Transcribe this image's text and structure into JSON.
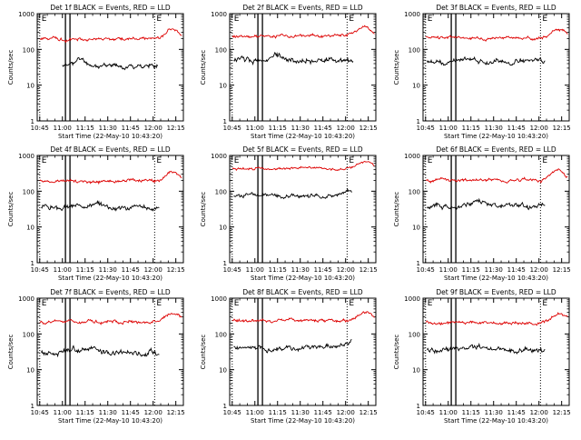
{
  "chart_data": [
    {
      "type": "line",
      "title": "Det 1f BLACK = Events, RED = LLD",
      "xlabel": "Start Time (22-May-10 10:43:20)",
      "ylabel": "Counts/sec",
      "yscale": "log",
      "ylim": [
        1,
        1000
      ],
      "x_ticks": [
        "10:45",
        "11:00",
        "11:15",
        "11:30",
        "11:45",
        "12:00",
        "12:15"
      ],
      "y_ticks": [
        "1",
        "10",
        "100",
        "1000"
      ],
      "markers": [
        {
          "label": "E",
          "time": "10:45"
        },
        {
          "label": "",
          "time": "11:02"
        },
        {
          "label": "",
          "time": "11:05"
        },
        {
          "label": "E",
          "time": "12:01"
        }
      ],
      "series": [
        {
          "name": "Events",
          "color": "#000000",
          "start": "11:00",
          "end": "12:03",
          "base": 35,
          "amp": 0.12,
          "seed": 11,
          "bumps": [
            {
              "time": "11:12",
              "amp": 0.5,
              "width": 5
            }
          ]
        },
        {
          "name": "LLD",
          "color": "#dd0000",
          "start": "10:45",
          "end": "12:19",
          "base": 200,
          "amp": 0.08,
          "seed": 21,
          "bumps": [
            {
              "time": "12:13",
              "amp": 0.8,
              "width": 6
            }
          ]
        }
      ]
    },
    {
      "type": "line",
      "title": "Det 2f BLACK = Events, RED = LLD",
      "xlabel": "Start Time (22-May-10 10:43:20)",
      "ylabel": "Counts/sec",
      "yscale": "log",
      "ylim": [
        1,
        1000
      ],
      "x_ticks": [
        "10:45",
        "11:00",
        "11:15",
        "11:30",
        "11:45",
        "12:00",
        "12:15"
      ],
      "y_ticks": [
        "1",
        "10",
        "100",
        "1000"
      ],
      "markers": [
        {
          "label": "E",
          "time": "10:45"
        },
        {
          "label": "",
          "time": "11:02"
        },
        {
          "label": "",
          "time": "11:05"
        },
        {
          "label": "E",
          "time": "12:01"
        }
      ],
      "series": [
        {
          "name": "Events",
          "color": "#000000",
          "start": "10:46",
          "end": "12:05",
          "base": 50,
          "amp": 0.14,
          "seed": 12,
          "bumps": [
            {
              "time": "11:15",
              "amp": 0.4,
              "width": 6
            }
          ]
        },
        {
          "name": "LLD",
          "color": "#dd0000",
          "start": "10:45",
          "end": "12:19",
          "base": 240,
          "amp": 0.08,
          "seed": 22,
          "bumps": [
            {
              "time": "12:12",
              "amp": 0.7,
              "width": 6
            }
          ]
        }
      ]
    },
    {
      "type": "line",
      "title": "Det 3f BLACK = Events, RED = LLD",
      "xlabel": "Start Time (22-May-10 10:43:20)",
      "ylabel": "Counts/sec",
      "yscale": "log",
      "ylim": [
        1,
        1000
      ],
      "x_ticks": [
        "10:45",
        "11:00",
        "11:15",
        "11:30",
        "11:45",
        "12:00",
        "12:15"
      ],
      "y_ticks": [
        "1",
        "10",
        "100",
        "1000"
      ],
      "markers": [
        {
          "label": "E",
          "time": "10:45"
        },
        {
          "label": "",
          "time": "11:02"
        },
        {
          "label": "",
          "time": "11:05"
        },
        {
          "label": "E",
          "time": "12:01"
        }
      ],
      "series": [
        {
          "name": "Events",
          "color": "#000000",
          "start": "10:46",
          "end": "12:04",
          "base": 45,
          "amp": 0.13,
          "seed": 13,
          "bumps": [
            {
              "time": "11:15",
              "amp": 0.4,
              "width": 6
            }
          ]
        },
        {
          "name": "LLD",
          "color": "#dd0000",
          "start": "10:45",
          "end": "12:19",
          "base": 210,
          "amp": 0.08,
          "seed": 23,
          "bumps": [
            {
              "time": "12:13",
              "amp": 0.8,
              "width": 6
            }
          ]
        }
      ]
    },
    {
      "type": "line",
      "title": "Det 4f BLACK = Events, RED = LLD",
      "xlabel": "Start Time (22-May-10 10:43:20)",
      "ylabel": "Counts/sec",
      "yscale": "log",
      "ylim": [
        1,
        1000
      ],
      "x_ticks": [
        "10:45",
        "11:00",
        "11:15",
        "11:30",
        "11:45",
        "12:00",
        "12:15"
      ],
      "y_ticks": [
        "1",
        "10",
        "100",
        "1000"
      ],
      "markers": [
        {
          "label": "E",
          "time": "10:45"
        },
        {
          "label": "",
          "time": "11:02"
        },
        {
          "label": "",
          "time": "11:05"
        },
        {
          "label": "E",
          "time": "12:01"
        }
      ],
      "series": [
        {
          "name": "Events",
          "color": "#000000",
          "start": "10:46",
          "end": "12:04",
          "base": 35,
          "amp": 0.13,
          "seed": 14,
          "bumps": [
            {
              "time": "11:20",
              "amp": 0.3,
              "width": 8
            }
          ]
        },
        {
          "name": "LLD",
          "color": "#dd0000",
          "start": "10:45",
          "end": "12:19",
          "base": 190,
          "amp": 0.08,
          "seed": 24,
          "bumps": [
            {
              "time": "12:13",
              "amp": 0.8,
              "width": 6
            }
          ]
        }
      ]
    },
    {
      "type": "line",
      "title": "Det 5f BLACK = Events, RED = LLD",
      "xlabel": "Start Time (22-May-10 10:43:20)",
      "ylabel": "Counts/sec",
      "yscale": "log",
      "ylim": [
        1,
        1000
      ],
      "x_ticks": [
        "10:45",
        "11:00",
        "11:15",
        "11:30",
        "11:45",
        "12:00",
        "12:15"
      ],
      "y_ticks": [
        "1",
        "10",
        "100",
        "1000"
      ],
      "markers": [
        {
          "label": "E",
          "time": "10:45"
        },
        {
          "label": "",
          "time": "11:02"
        },
        {
          "label": "",
          "time": "11:05"
        },
        {
          "label": "E",
          "time": "12:01"
        }
      ],
      "series": [
        {
          "name": "Events",
          "color": "#000000",
          "start": "10:46",
          "end": "12:04",
          "base": 75,
          "amp": 0.1,
          "seed": 15,
          "bumps": [
            {
              "time": "12:01",
              "amp": 0.4,
              "width": 4
            }
          ]
        },
        {
          "name": "LLD",
          "color": "#dd0000",
          "start": "10:45",
          "end": "12:19",
          "base": 440,
          "amp": 0.06,
          "seed": 25,
          "bumps": [
            {
              "time": "12:13",
              "amp": 0.5,
              "width": 6
            }
          ]
        }
      ]
    },
    {
      "type": "line",
      "title": "Det 6f BLACK = Events, RED = LLD",
      "xlabel": "Start Time (22-May-10 10:43:20)",
      "ylabel": "Counts/sec",
      "yscale": "log",
      "ylim": [
        1,
        1000
      ],
      "x_ticks": [
        "10:45",
        "11:00",
        "11:15",
        "11:30",
        "11:45",
        "12:00",
        "12:15"
      ],
      "y_ticks": [
        "1",
        "10",
        "100",
        "1000"
      ],
      "markers": [
        {
          "label": "E",
          "time": "10:45"
        },
        {
          "label": "",
          "time": "11:02"
        },
        {
          "label": "",
          "time": "11:05"
        },
        {
          "label": "E",
          "time": "12:01"
        }
      ],
      "series": [
        {
          "name": "Events",
          "color": "#000000",
          "start": "10:46",
          "end": "12:04",
          "base": 38,
          "amp": 0.13,
          "seed": 16,
          "bumps": [
            {
              "time": "11:20",
              "amp": 0.3,
              "width": 8
            }
          ]
        },
        {
          "name": "LLD",
          "color": "#dd0000",
          "start": "10:45",
          "end": "12:19",
          "base": 210,
          "amp": 0.08,
          "seed": 26,
          "bumps": [
            {
              "time": "12:13",
              "amp": 0.8,
              "width": 6
            }
          ]
        }
      ]
    },
    {
      "type": "line",
      "title": "Det 7f BLACK = Events, RED = LLD",
      "xlabel": "Start Time (22-May-10 10:43:20)",
      "ylabel": "Counts/sec",
      "yscale": "log",
      "ylim": [
        1,
        1000
      ],
      "x_ticks": [
        "10:45",
        "11:00",
        "11:15",
        "11:30",
        "11:45",
        "12:00",
        "12:15"
      ],
      "y_ticks": [
        "1",
        "10",
        "100",
        "1000"
      ],
      "markers": [
        {
          "label": "E",
          "time": "10:45"
        },
        {
          "label": "",
          "time": "11:02"
        },
        {
          "label": "",
          "time": "11:05"
        },
        {
          "label": "E",
          "time": "12:01"
        }
      ],
      "series": [
        {
          "name": "Events",
          "color": "#000000",
          "start": "10:46",
          "end": "12:04",
          "base": 30,
          "amp": 0.14,
          "seed": 17,
          "bumps": [
            {
              "time": "11:15",
              "amp": 0.3,
              "width": 8
            }
          ]
        },
        {
          "name": "LLD",
          "color": "#dd0000",
          "start": "10:45",
          "end": "12:19",
          "base": 220,
          "amp": 0.08,
          "seed": 27,
          "bumps": [
            {
              "time": "12:13",
              "amp": 0.7,
              "width": 6
            }
          ]
        }
      ]
    },
    {
      "type": "line",
      "title": "Det 8f BLACK = Events, RED = LLD",
      "xlabel": "Start Time (22-May-10 10:43:20)",
      "ylabel": "Counts/sec",
      "yscale": "log",
      "ylim": [
        1,
        1000
      ],
      "x_ticks": [
        "10:45",
        "11:00",
        "11:15",
        "11:30",
        "11:45",
        "12:00",
        "12:15"
      ],
      "y_ticks": [
        "1",
        "10",
        "100",
        "1000"
      ],
      "markers": [
        {
          "label": "E",
          "time": "10:45"
        },
        {
          "label": "",
          "time": "11:02"
        },
        {
          "label": "",
          "time": "11:05"
        },
        {
          "label": "E",
          "time": "12:01"
        }
      ],
      "series": [
        {
          "name": "Events",
          "color": "#000000",
          "start": "10:46",
          "end": "12:04",
          "base": 40,
          "amp": 0.13,
          "seed": 18,
          "bumps": [
            {
              "time": "12:02",
              "amp": 0.4,
              "width": 4
            }
          ]
        },
        {
          "name": "LLD",
          "color": "#dd0000",
          "start": "10:45",
          "end": "12:19",
          "base": 240,
          "amp": 0.08,
          "seed": 28,
          "bumps": [
            {
              "time": "12:13",
              "amp": 0.6,
              "width": 6
            }
          ]
        }
      ]
    },
    {
      "type": "line",
      "title": "Det 9f BLACK = Events, RED = LLD",
      "xlabel": "Start Time (22-May-10 10:43:20)",
      "ylabel": "Counts/sec",
      "yscale": "log",
      "ylim": [
        1,
        1000
      ],
      "x_ticks": [
        "10:45",
        "11:00",
        "11:15",
        "11:30",
        "11:45",
        "12:00",
        "12:15"
      ],
      "y_ticks": [
        "1",
        "10",
        "100",
        "1000"
      ],
      "markers": [
        {
          "label": "E",
          "time": "10:45"
        },
        {
          "label": "",
          "time": "11:02"
        },
        {
          "label": "",
          "time": "11:05"
        },
        {
          "label": "E",
          "time": "12:01"
        }
      ],
      "series": [
        {
          "name": "Events",
          "color": "#000000",
          "start": "10:46",
          "end": "12:04",
          "base": 35,
          "amp": 0.13,
          "seed": 19,
          "bumps": [
            {
              "time": "11:15",
              "amp": 0.3,
              "width": 8
            }
          ]
        },
        {
          "name": "LLD",
          "color": "#dd0000",
          "start": "10:45",
          "end": "12:19",
          "base": 200,
          "amp": 0.08,
          "seed": 29,
          "bumps": [
            {
              "time": "12:13",
              "amp": 0.8,
              "width": 6
            }
          ]
        }
      ]
    }
  ]
}
